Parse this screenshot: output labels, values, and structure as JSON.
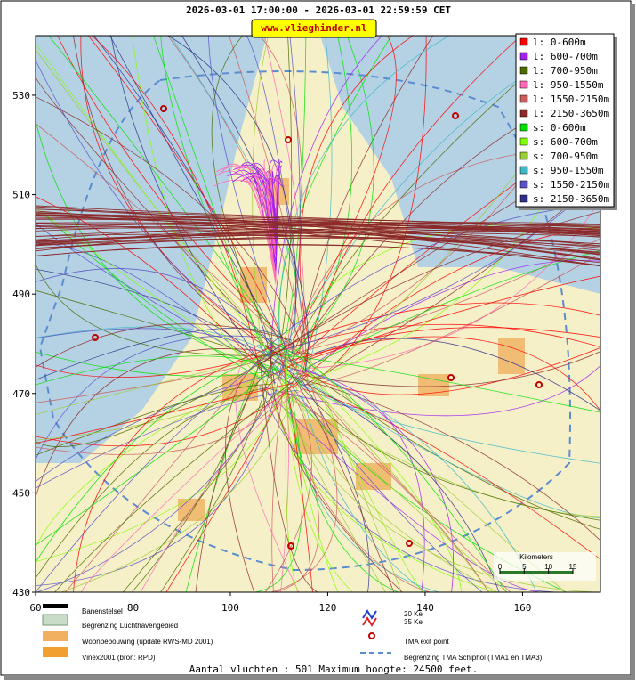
{
  "header": {
    "title": "2026-03-01 17:00:00 - 2026-03-01 22:59:59 CET",
    "site": "www.vlieghinder.nl"
  },
  "map": {
    "xlim": [
      60,
      176
    ],
    "ylim": [
      430,
      542
    ],
    "xticks": [
      60,
      80,
      100,
      120,
      140,
      160
    ],
    "yticks": [
      430,
      450,
      470,
      490,
      510,
      530
    ],
    "scale": {
      "title": "Kilometers",
      "ticks": [
        0,
        5,
        10,
        15
      ]
    }
  },
  "altitude_legend": [
    {
      "label": "l: 0-600m",
      "color": "#ff0000"
    },
    {
      "label": "l: 600-700m",
      "color": "#a020f0"
    },
    {
      "label": "l: 700-950m",
      "color": "#4b6b00"
    },
    {
      "label": "l: 950-1550m",
      "color": "#ff69b4"
    },
    {
      "label": "l: 1550-2150m",
      "color": "#cd5c5c"
    },
    {
      "label": "l: 2150-3650m",
      "color": "#8b2a2a"
    },
    {
      "label": "s: 0-600m",
      "color": "#00e000"
    },
    {
      "label": "s: 600-700m",
      "color": "#80ff00"
    },
    {
      "label": "s: 700-950m",
      "color": "#9acd32"
    },
    {
      "label": "s: 950-1550m",
      "color": "#40b8c8"
    },
    {
      "label": "s: 1550-2150m",
      "color": "#5a50c8"
    },
    {
      "label": "s: 2150-3650m",
      "color": "#303088"
    }
  ],
  "map_legend": {
    "items": [
      "Banenstelsel",
      "Begrenzing Luchthavengebied",
      "Woonbebouwing (update RWS-MD 2001)",
      "Vinex2001 (bron: RPD)"
    ],
    "ke": [
      "20 Ke",
      "35 Ke"
    ],
    "exit": "TMA exit point",
    "tma": "Begrenzing TMA Schiphol  (TMA1 en TMA3)"
  },
  "footer": "Aantal vluchten : 501 Maximum hoogte: 24500 feet."
}
